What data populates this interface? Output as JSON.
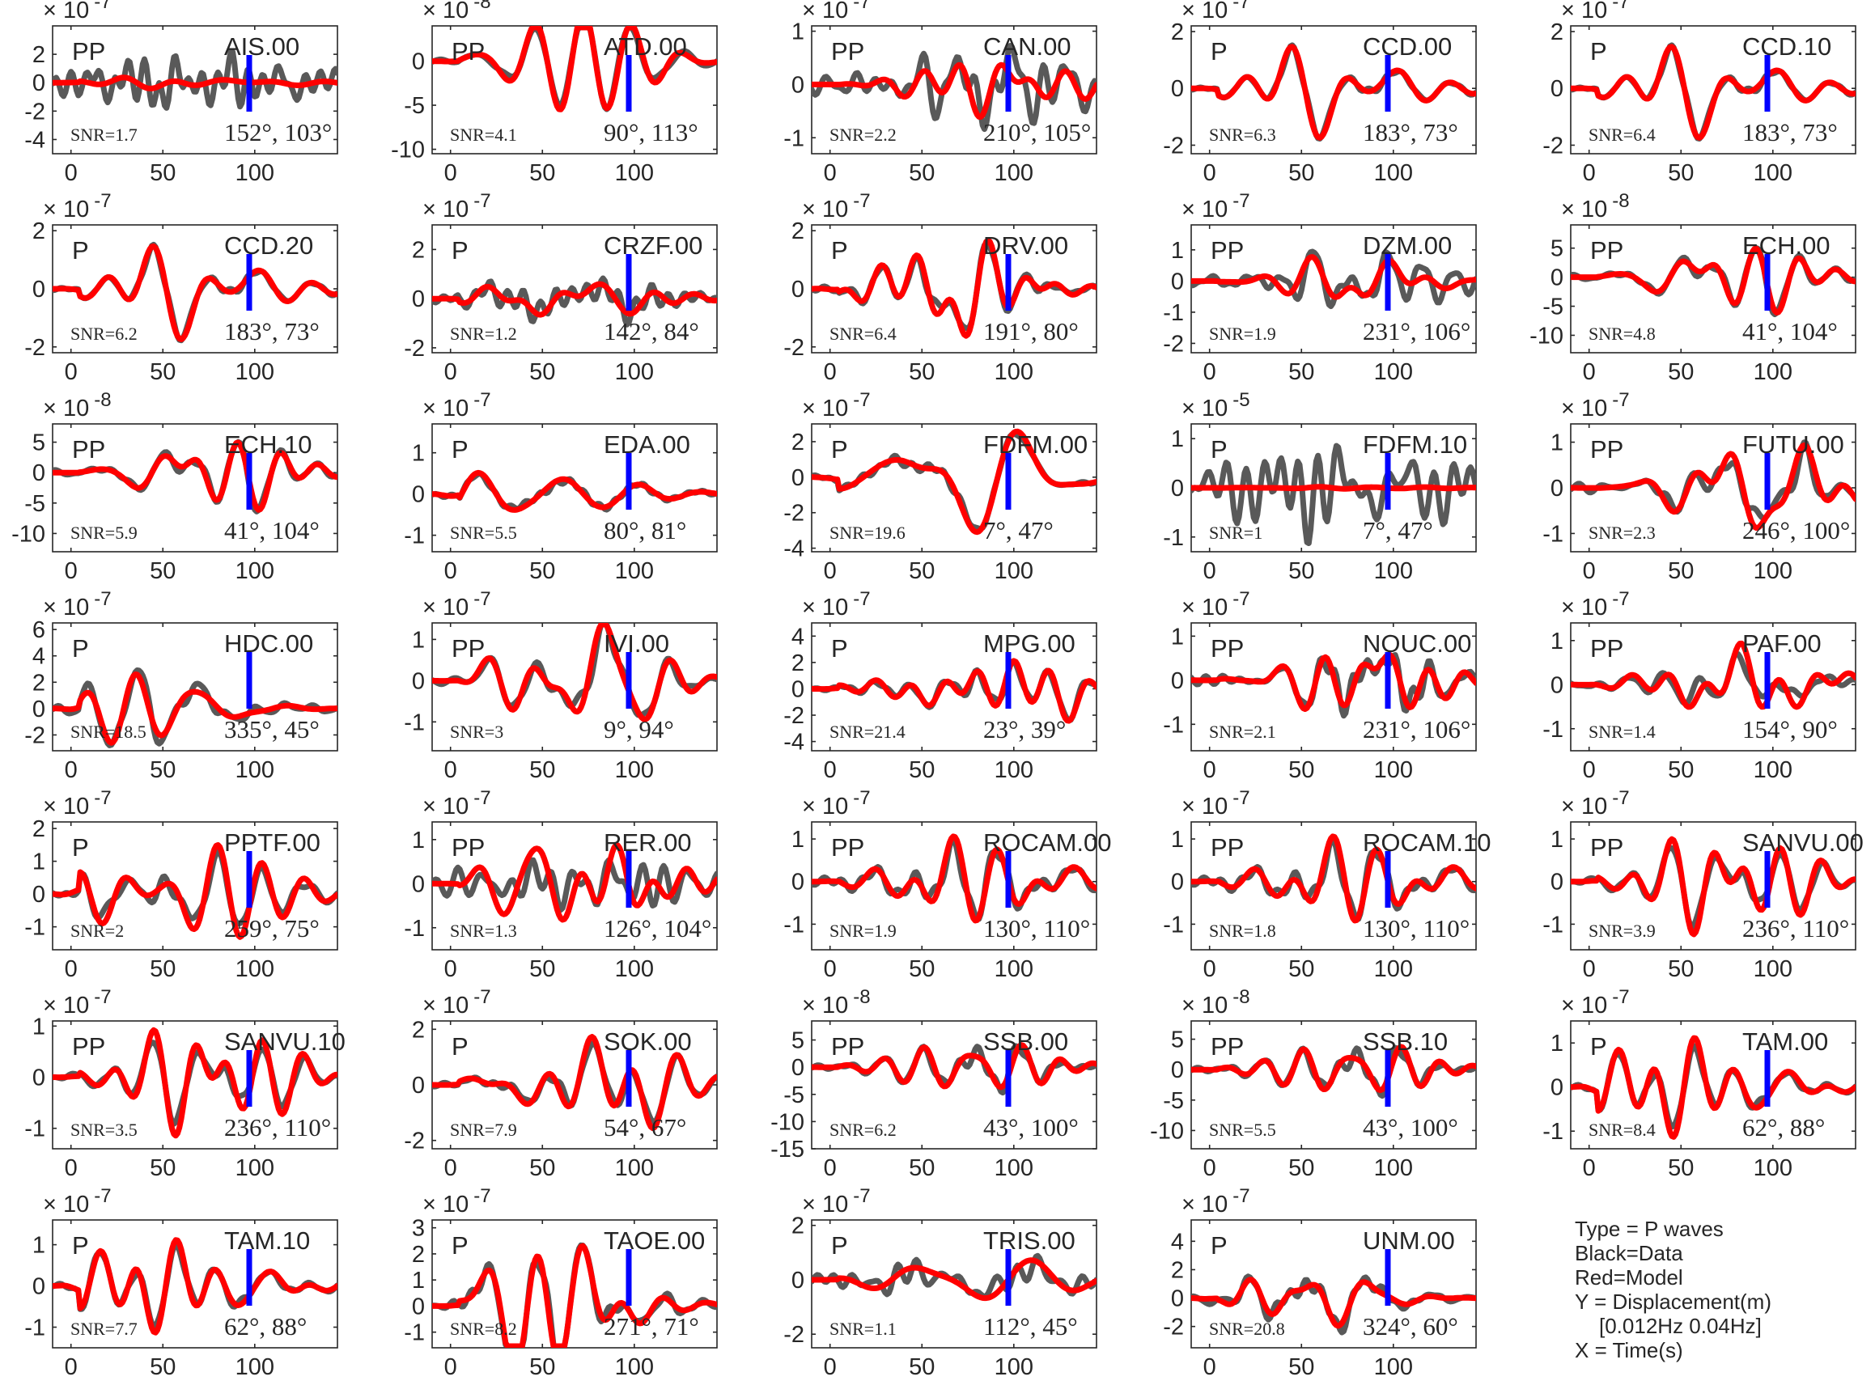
{
  "chart_data": {
    "type": "line",
    "xlim": [
      -10,
      145
    ],
    "xticks": [
      0,
      50,
      100
    ],
    "marker_x": 97,
    "legend": {
      "lines": [
        "Type = P waves",
        "Black=Data",
        "Red=Model",
        "Y = Displacement(m)",
        "[0.012Hz 0.04Hz]",
        "X = Time(s)"
      ],
      "placement": "bottom-right"
    },
    "colors": {
      "data": "#595959",
      "model": "#ff0000",
      "marker": "#0000ff",
      "axes": "#262626"
    },
    "panels": [
      {
        "station": "AIS.00",
        "phase": "PP",
        "snr": "SNR=1.7",
        "angles": "152°, 103°",
        "exp": "-7",
        "ylim": [
          -5,
          4
        ],
        "yticks": [
          -4,
          -2,
          0,
          2
        ],
        "seed": 1,
        "amp": 3.2,
        "mamp": 0.5,
        "center": 60,
        "wid": 70,
        "fit": 0.15
      },
      {
        "station": "ATD.00",
        "phase": "PP",
        "snr": "SNR=4.1",
        "angles": "90°, 113°",
        "exp": "-8",
        "ylim": [
          -10.5,
          4
        ],
        "yticks": [
          -10,
          -5,
          0
        ],
        "seed": 2,
        "amp": 9,
        "mamp": 8.5,
        "center": 70,
        "wid": 45,
        "fit": 0.85
      },
      {
        "station": "CAN.00",
        "phase": "PP",
        "snr": "SNR=2.2",
        "angles": "210°, 105°",
        "exp": "-7",
        "ylim": [
          -1.3,
          1.1
        ],
        "yticks": [
          -1,
          0,
          1
        ],
        "seed": 3,
        "amp": 1.1,
        "mamp": 0.6,
        "center": 95,
        "wid": 50,
        "fit": 0.3
      },
      {
        "station": "CCD.00",
        "phase": "P",
        "snr": "SNR=6.3",
        "angles": "183°, 73°",
        "exp": "-7",
        "ylim": [
          -2.3,
          2.2
        ],
        "yticks": [
          -2,
          0,
          2
        ],
        "seed": 4,
        "amp": 2,
        "mamp": 1.9,
        "center": 65,
        "wid": 50,
        "fit": 0.9
      },
      {
        "station": "CCD.10",
        "phase": "P",
        "snr": "SNR=6.4",
        "angles": "183°, 73°",
        "exp": "-7",
        "ylim": [
          -2.3,
          2.2
        ],
        "yticks": [
          -2,
          0,
          2
        ],
        "seed": 4,
        "amp": 2,
        "mamp": 1.9,
        "center": 65,
        "wid": 50,
        "fit": 0.9
      },
      {
        "station": "CCD.20",
        "phase": "P",
        "snr": "SNR=6.2",
        "angles": "183°, 73°",
        "exp": "-7",
        "ylim": [
          -2.2,
          2.2
        ],
        "yticks": [
          -2,
          0,
          2
        ],
        "seed": 4,
        "amp": 2,
        "mamp": 1.9,
        "center": 65,
        "wid": 50,
        "fit": 0.9
      },
      {
        "station": "CRZF.00",
        "phase": "P",
        "snr": "SNR=1.2",
        "angles": "142°, 84°",
        "exp": "-7",
        "ylim": [
          -2.2,
          3
        ],
        "yticks": [
          -2,
          0,
          2
        ],
        "seed": 5,
        "amp": 2,
        "mamp": 1.8,
        "center": 70,
        "wid": 50,
        "fit": 0.75
      },
      {
        "station": "DRV.00",
        "phase": "P",
        "snr": "SNR=6.4",
        "angles": "191°, 80°",
        "exp": "-7",
        "ylim": [
          -2.2,
          2.2
        ],
        "yticks": [
          -2,
          0,
          2
        ],
        "seed": 6,
        "amp": 1.9,
        "mamp": 1.8,
        "center": 65,
        "wid": 55,
        "fit": 0.85
      },
      {
        "station": "DZM.00",
        "phase": "PP",
        "snr": "SNR=1.9",
        "angles": "231°, 106°",
        "exp": "-7",
        "ylim": [
          -2.3,
          1.8
        ],
        "yticks": [
          -2,
          -1,
          0,
          1
        ],
        "seed": 7,
        "amp": 1.8,
        "mamp": 1,
        "center": 90,
        "wid": 55,
        "fit": 0.4
      },
      {
        "station": "ECH.00",
        "phase": "PP",
        "snr": "SNR=4.8",
        "angles": "41°, 104°",
        "exp": "-8",
        "ylim": [
          -13,
          9
        ],
        "yticks": [
          -10,
          -5,
          0,
          5
        ],
        "seed": 8,
        "amp": 11,
        "mamp": 10,
        "center": 85,
        "wid": 45,
        "fit": 0.85
      },
      {
        "station": "ECH.10",
        "phase": "PP",
        "snr": "SNR=5.9",
        "angles": "41°, 104°",
        "exp": "-8",
        "ylim": [
          -13,
          8
        ],
        "yticks": [
          -10,
          -5,
          0,
          5
        ],
        "seed": 8,
        "amp": 11,
        "mamp": 10,
        "center": 85,
        "wid": 45,
        "fit": 0.85
      },
      {
        "station": "EDA.00",
        "phase": "P",
        "snr": "SNR=5.5",
        "angles": "80°, 81°",
        "exp": "-7",
        "ylim": [
          -1.4,
          1.7
        ],
        "yticks": [
          -1,
          0,
          1
        ],
        "seed": 9,
        "amp": 1.3,
        "mamp": 1.3,
        "center": 65,
        "wid": 55,
        "fit": 0.9
      },
      {
        "station": "FDFM.00",
        "phase": "P",
        "snr": "SNR=19.6",
        "angles": "7°, 47°",
        "exp": "-7",
        "ylim": [
          -4.2,
          3
        ],
        "yticks": [
          -4,
          -2,
          0,
          2
        ],
        "seed": 10,
        "amp": 3.5,
        "mamp": 3.3,
        "center": 70,
        "wid": 55,
        "fit": 0.9
      },
      {
        "station": "FDFM.10",
        "phase": "P",
        "snr": "SNR=1",
        "angles": "7°, 47°",
        "exp": "-5",
        "ylim": [
          -1.3,
          1.3
        ],
        "yticks": [
          -1,
          0,
          1
        ],
        "seed": 11,
        "amp": 1.1,
        "mamp": 0.02,
        "center": 80,
        "wid": 70,
        "fit": 0
      },
      {
        "station": "FUTU.00",
        "phase": "PP",
        "snr": "SNR=2.3",
        "angles": "246°, 100°",
        "exp": "-7",
        "ylim": [
          -1.4,
          1.4
        ],
        "yticks": [
          -1,
          0,
          1
        ],
        "seed": 12,
        "amp": 1.2,
        "mamp": 1.1,
        "center": 95,
        "wid": 50,
        "fit": 0.7
      },
      {
        "station": "HDC.00",
        "phase": "P",
        "snr": "SNR=18.5",
        "angles": "335°, 45°",
        "exp": "-7",
        "ylim": [
          -3.2,
          6.5
        ],
        "yticks": [
          -2,
          0,
          2,
          4,
          6
        ],
        "seed": 13,
        "amp": 5,
        "mamp": 3.8,
        "center": 40,
        "wid": 50,
        "fit": 0.8
      },
      {
        "station": "IVI.00",
        "phase": "PP",
        "snr": "SNR=3",
        "angles": "9°, 94°",
        "exp": "-7",
        "ylim": [
          -1.7,
          1.4
        ],
        "yticks": [
          -1,
          0,
          1
        ],
        "seed": 14,
        "amp": 1.5,
        "mamp": 1.3,
        "center": 75,
        "wid": 50,
        "fit": 0.8
      },
      {
        "station": "MPG.00",
        "phase": "P",
        "snr": "SNR=21.4",
        "angles": "23°, 39°",
        "exp": "-7",
        "ylim": [
          -4.7,
          5
        ],
        "yticks": [
          -4,
          -2,
          0,
          2,
          4
        ],
        "seed": 15,
        "amp": 4,
        "mamp": 3.5,
        "center": 90,
        "wid": 55,
        "fit": 0.8
      },
      {
        "station": "NOUC.00",
        "phase": "PP",
        "snr": "SNR=2.1",
        "angles": "231°, 106°",
        "exp": "-7",
        "ylim": [
          -1.6,
          1.3
        ],
        "yticks": [
          -1,
          0,
          1
        ],
        "seed": 16,
        "amp": 1.4,
        "mamp": 1.1,
        "center": 95,
        "wid": 50,
        "fit": 0.7
      },
      {
        "station": "PAF.00",
        "phase": "PP",
        "snr": "SNR=1.4",
        "angles": "154°, 90°",
        "exp": "-7",
        "ylim": [
          -1.5,
          1.4
        ],
        "yticks": [
          -1,
          0,
          1
        ],
        "seed": 17,
        "amp": 1,
        "mamp": 0.8,
        "center": 85,
        "wid": 55,
        "fit": 0.5
      },
      {
        "station": "PPTF.00",
        "phase": "P",
        "snr": "SNR=2",
        "angles": "259°, 75°",
        "exp": "-7",
        "ylim": [
          -1.7,
          2.2
        ],
        "yticks": [
          -1,
          0,
          1,
          2
        ],
        "seed": 18,
        "amp": 1.8,
        "mamp": 1.9,
        "center": 50,
        "wid": 60,
        "fit": 0.8
      },
      {
        "station": "RER.00",
        "phase": "PP",
        "snr": "SNR=1.3",
        "angles": "126°, 104°",
        "exp": "-7",
        "ylim": [
          -1.5,
          1.4
        ],
        "yticks": [
          -1,
          0,
          1
        ],
        "seed": 19,
        "amp": 1.2,
        "mamp": 1,
        "center": 80,
        "wid": 60,
        "fit": 0.2
      },
      {
        "station": "ROCAM.00",
        "phase": "PP",
        "snr": "SNR=1.9",
        "angles": "130°, 110°",
        "exp": "-7",
        "ylim": [
          -1.6,
          1.4
        ],
        "yticks": [
          -1,
          0,
          1
        ],
        "seed": 20,
        "amp": 1.3,
        "mamp": 1.2,
        "center": 80,
        "wid": 50,
        "fit": 0.7
      },
      {
        "station": "ROCAM.10",
        "phase": "PP",
        "snr": "SNR=1.8",
        "angles": "130°, 110°",
        "exp": "-7",
        "ylim": [
          -1.6,
          1.4
        ],
        "yticks": [
          -1,
          0,
          1
        ],
        "seed": 20,
        "amp": 1.3,
        "mamp": 1.2,
        "center": 80,
        "wid": 50,
        "fit": 0.7
      },
      {
        "station": "SANVU.00",
        "phase": "PP",
        "snr": "SNR=3.9",
        "angles": "236°, 110°",
        "exp": "-7",
        "ylim": [
          -1.6,
          1.4
        ],
        "yticks": [
          -1,
          0,
          1
        ],
        "seed": 21,
        "amp": 1.4,
        "mamp": 1.3,
        "center": 80,
        "wid": 50,
        "fit": 0.85
      },
      {
        "station": "SANVU.10",
        "phase": "PP",
        "snr": "SNR=3.5",
        "angles": "236°, 110°",
        "exp": "-7",
        "ylim": [
          -1.4,
          1.1
        ],
        "yticks": [
          -1,
          0,
          1
        ],
        "seed": 21,
        "amp": 1.2,
        "mamp": 1.2,
        "center": 80,
        "wid": 50,
        "fit": 0.85
      },
      {
        "station": "SOK.00",
        "phase": "P",
        "snr": "SNR=7.9",
        "angles": "54°, 67°",
        "exp": "-7",
        "ylim": [
          -2.3,
          2.3
        ],
        "yticks": [
          -2,
          0,
          2
        ],
        "seed": 22,
        "amp": 2,
        "mamp": 1.8,
        "center": 85,
        "wid": 55,
        "fit": 0.8
      },
      {
        "station": "SSB.00",
        "phase": "PP",
        "snr": "SNR=6.2",
        "angles": "43°, 100°",
        "exp": "-8",
        "ylim": [
          -15,
          8.5
        ],
        "yticks": [
          -15,
          -10,
          -5,
          0,
          5
        ],
        "seed": 23,
        "amp": 13,
        "mamp": 12,
        "center": 85,
        "wid": 45,
        "fit": 0.85
      },
      {
        "station": "SSB.10",
        "phase": "PP",
        "snr": "SNR=5.5",
        "angles": "43°, 100°",
        "exp": "-8",
        "ylim": [
          -13,
          8
        ],
        "yticks": [
          -10,
          -5,
          0,
          5
        ],
        "seed": 23,
        "amp": 12,
        "mamp": 11,
        "center": 85,
        "wid": 45,
        "fit": 0.85
      },
      {
        "station": "TAM.00",
        "phase": "P",
        "snr": "SNR=8.4",
        "angles": "62°, 88°",
        "exp": "-7",
        "ylim": [
          -1.4,
          1.5
        ],
        "yticks": [
          -1,
          0,
          1
        ],
        "seed": 24,
        "amp": 1.3,
        "mamp": 1.3,
        "center": 50,
        "wid": 65,
        "fit": 0.85
      },
      {
        "station": "TAM.10",
        "phase": "P",
        "snr": "SNR=7.7",
        "angles": "62°, 88°",
        "exp": "-7",
        "ylim": [
          -1.5,
          1.6
        ],
        "yticks": [
          -1,
          0,
          1
        ],
        "seed": 24,
        "amp": 1.4,
        "mamp": 1.3,
        "center": 50,
        "wid": 65,
        "fit": 0.85
      },
      {
        "station": "TAOE.00",
        "phase": "P",
        "snr": "SNR=8.2",
        "angles": "271°, 71°",
        "exp": "-7",
        "ylim": [
          -1.6,
          3.3
        ],
        "yticks": [
          -1,
          0,
          1,
          2,
          3
        ],
        "seed": 25,
        "amp": 3,
        "mamp": 2.4,
        "center": 45,
        "wid": 55,
        "fit": 0.8
      },
      {
        "station": "TRIS.00",
        "phase": "P",
        "snr": "SNR=1.1",
        "angles": "112°, 45°",
        "exp": "-7",
        "ylim": [
          -2.5,
          2.2
        ],
        "yticks": [
          -2,
          0,
          2
        ],
        "seed": 26,
        "amp": 1.9,
        "mamp": 1.8,
        "center": 75,
        "wid": 55,
        "fit": 0.6
      },
      {
        "station": "UNM.00",
        "phase": "P",
        "snr": "SNR=20.8",
        "angles": "324°, 60°",
        "exp": "-7",
        "ylim": [
          -3.5,
          5.5
        ],
        "yticks": [
          -2,
          0,
          2,
          4
        ],
        "seed": 27,
        "amp": 4.5,
        "mamp": 3.3,
        "center": 40,
        "wid": 55,
        "fit": 0.8
      }
    ]
  }
}
